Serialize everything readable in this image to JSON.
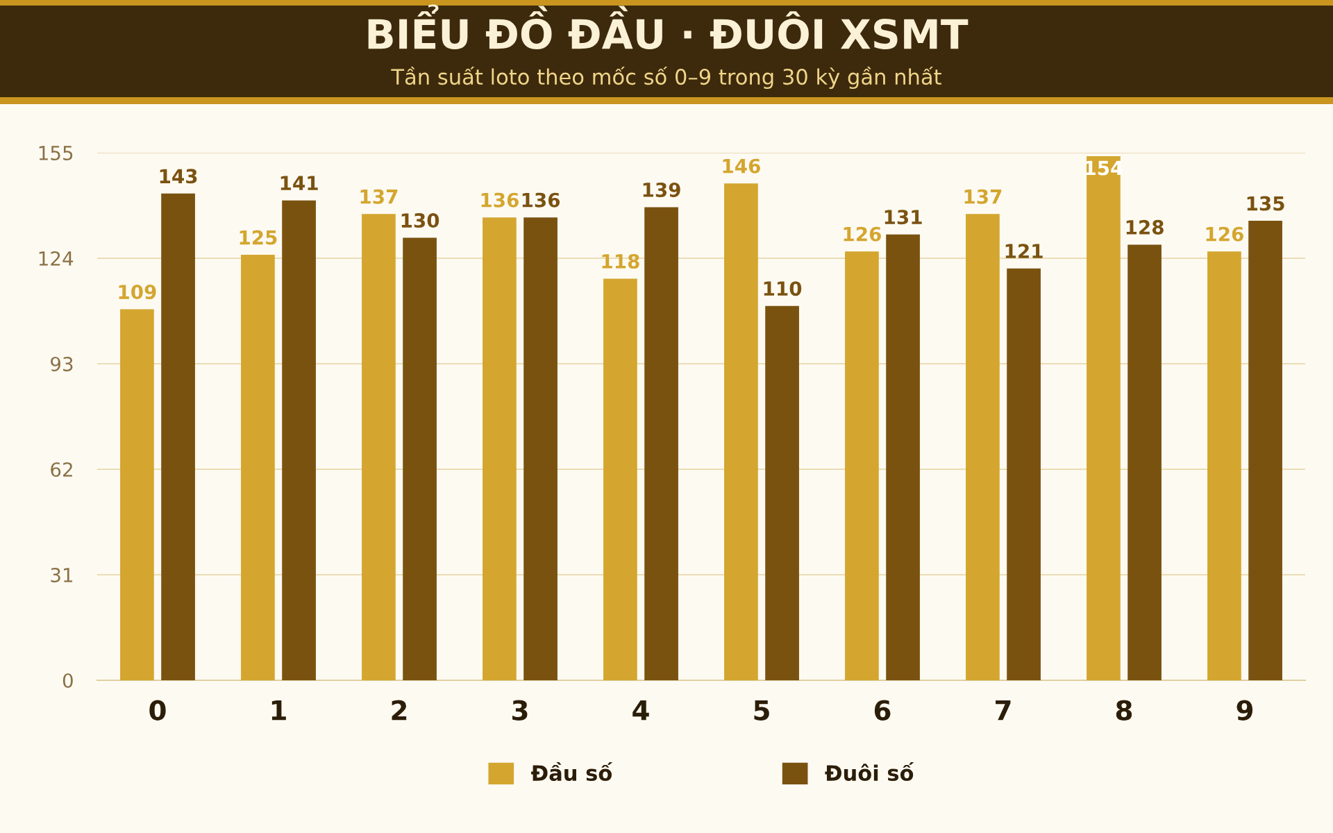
{
  "chart_data": {
    "type": "bar",
    "title": "BIỂU ĐỒ ĐẦU · ĐUÔI XSMT",
    "subtitle": "Tần suất loto theo mốc số 0–9 trong 30 kỳ gần nhất",
    "categories": [
      "0",
      "1",
      "2",
      "3",
      "4",
      "5",
      "6",
      "7",
      "8",
      "9"
    ],
    "series": [
      {
        "name": "Đầu số",
        "color": "#d4a62f",
        "values": [
          109,
          125,
          137,
          136,
          118,
          146,
          126,
          137,
          154,
          126
        ]
      },
      {
        "name": "Đuôi số",
        "color": "#7a5210",
        "values": [
          143,
          141,
          130,
          136,
          139,
          110,
          131,
          121,
          128,
          135
        ]
      }
    ],
    "ylim": [
      0,
      155
    ],
    "yticks": [
      0,
      31,
      62,
      93,
      124,
      155
    ],
    "grid": "y",
    "legend": "bottom",
    "data_labels": true
  }
}
